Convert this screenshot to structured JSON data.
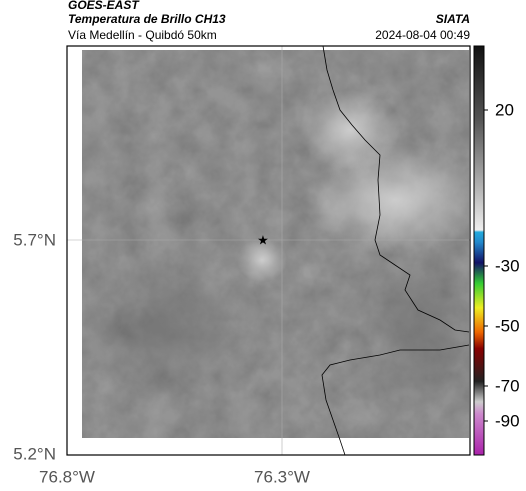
{
  "header": {
    "satellite": "GOES-EAST",
    "product": "Temperatura de Brillo CH13",
    "region": "Vía Medellín - Quibdó 50km",
    "source": "SIATA",
    "datetime": "2024-08-04 00:49"
  },
  "map": {
    "lat_labels": [
      "5.7°N",
      "5.2°N"
    ],
    "lon_labels": [
      "76.8°W",
      "76.3°W"
    ]
  },
  "colorbar": {
    "ticks": [
      20,
      -30,
      -50,
      -70,
      -90
    ]
  }
}
